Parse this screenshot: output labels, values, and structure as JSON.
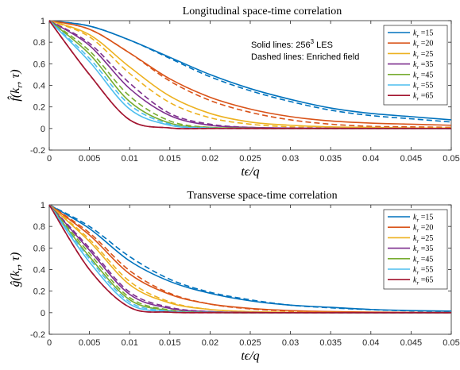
{
  "chart_data": [
    {
      "type": "line",
      "title": "Longitudinal space-time correlation",
      "xlabel": "tϵ/q",
      "ylabel": "f̂(kr, τ)",
      "ylabel_fn": "f",
      "xlim": [
        0,
        0.05
      ],
      "ylim": [
        -0.2,
        1
      ],
      "x_ticks": [
        "0",
        "0.005",
        "0.01",
        "0.015",
        "0.02",
        "0.025",
        "0.03",
        "0.035",
        "0.04",
        "0.045",
        "0.05"
      ],
      "y_ticks": [
        "-0.2",
        "0",
        "0.2",
        "0.4",
        "0.6",
        "0.8",
        "1"
      ],
      "grid": false,
      "legend_position": "top-right",
      "annotation_line1": "Solid lines: 256",
      "annotation_sup": "3",
      "annotation_line1_suffix": " LES",
      "annotation_line2": "Dashed lines: Enriched field",
      "line_styles": {
        "solid": "256³ LES",
        "dashed": "Enriched field"
      },
      "x": [
        0,
        0.005,
        0.01,
        0.015,
        0.02,
        0.025,
        0.03,
        0.035,
        0.04,
        0.045,
        0.05
      ],
      "series": [
        {
          "name": "kr =15",
          "color": "#0072BD",
          "solid": [
            1,
            0.95,
            0.82,
            0.66,
            0.5,
            0.37,
            0.27,
            0.19,
            0.14,
            0.11,
            0.08
          ],
          "dashed": [
            1,
            0.95,
            0.82,
            0.65,
            0.48,
            0.35,
            0.25,
            0.17,
            0.12,
            0.09,
            0.06
          ]
        },
        {
          "name": "kr =20",
          "color": "#D95319",
          "solid": [
            1,
            0.92,
            0.7,
            0.46,
            0.29,
            0.18,
            0.11,
            0.07,
            0.05,
            0.04,
            0.03
          ],
          "dashed": [
            1,
            0.92,
            0.7,
            0.44,
            0.26,
            0.15,
            0.08,
            0.04,
            0.02,
            0.015,
            0.01
          ]
        },
        {
          "name": "kr =25",
          "color": "#EDB120",
          "solid": [
            1,
            0.87,
            0.57,
            0.3,
            0.14,
            0.06,
            0.03,
            0.015,
            0.01,
            0.005,
            0.004
          ],
          "dashed": [
            1,
            0.85,
            0.51,
            0.24,
            0.1,
            0.04,
            0.015,
            0.008,
            0.004,
            0.002,
            0.001
          ]
        },
        {
          "name": "kr =35",
          "color": "#7E2F8E",
          "solid": [
            1,
            0.77,
            0.37,
            0.12,
            0.03,
            0.01,
            0.004,
            0.002,
            0.001,
            0.001,
            0
          ],
          "dashed": [
            1,
            0.79,
            0.42,
            0.14,
            0.04,
            0.01,
            0.003,
            0.001,
            0,
            0,
            0
          ]
        },
        {
          "name": "kr =45",
          "color": "#77AC30",
          "solid": [
            1,
            0.69,
            0.25,
            0.05,
            0.01,
            0.002,
            0,
            0,
            0,
            0,
            0
          ],
          "dashed": [
            1,
            0.72,
            0.3,
            0.07,
            0.01,
            0.002,
            0,
            0,
            0,
            0,
            0
          ]
        },
        {
          "name": "kr =55",
          "color": "#4DBEEE",
          "solid": [
            1,
            0.62,
            0.18,
            0.03,
            0.003,
            0,
            0,
            0,
            0,
            0,
            0
          ],
          "dashed": [
            1,
            0.65,
            0.22,
            0.04,
            0.005,
            0,
            0,
            0,
            0,
            0,
            0
          ]
        },
        {
          "name": "kr =65",
          "color": "#A2142F",
          "solid": [
            1,
            0.5,
            0.08,
            0.005,
            0,
            0,
            0,
            0,
            0,
            0,
            0
          ],
          "dashed": [
            1,
            0.5,
            0.08,
            0.005,
            0,
            0,
            0,
            0,
            0,
            0,
            0
          ]
        }
      ]
    },
    {
      "type": "line",
      "title": "Transverse space-time correlation",
      "xlabel": "tϵ/q",
      "ylabel": "ĝ(kr, τ)",
      "ylabel_fn": "g",
      "xlim": [
        0,
        0.05
      ],
      "ylim": [
        -0.2,
        1
      ],
      "x_ticks": [
        "0",
        "0.005",
        "0.01",
        "0.015",
        "0.02",
        "0.025",
        "0.03",
        "0.035",
        "0.04",
        "0.045",
        "0.05"
      ],
      "y_ticks": [
        "-0.2",
        "0",
        "0.2",
        "0.4",
        "0.6",
        "0.8",
        "1"
      ],
      "grid": false,
      "legend_position": "top-right",
      "x": [
        0,
        0.005,
        0.01,
        0.015,
        0.02,
        0.025,
        0.03,
        0.035,
        0.04,
        0.045,
        0.05
      ],
      "series": [
        {
          "name": "kr =15",
          "color": "#0072BD",
          "solid": [
            1,
            0.78,
            0.48,
            0.29,
            0.18,
            0.11,
            0.07,
            0.05,
            0.03,
            0.02,
            0.015
          ],
          "dashed": [
            1,
            0.8,
            0.52,
            0.31,
            0.19,
            0.12,
            0.07,
            0.045,
            0.028,
            0.017,
            0.01
          ]
        },
        {
          "name": "kr =20",
          "color": "#D95319",
          "solid": [
            1,
            0.72,
            0.36,
            0.17,
            0.08,
            0.04,
            0.02,
            0.01,
            0.006,
            0.003,
            0.002
          ],
          "dashed": [
            1,
            0.74,
            0.39,
            0.18,
            0.08,
            0.035,
            0.015,
            0.007,
            0.003,
            0.001,
            0
          ]
        },
        {
          "name": "kr =25",
          "color": "#EDB120",
          "solid": [
            1,
            0.66,
            0.26,
            0.09,
            0.03,
            0.01,
            0.004,
            0.002,
            0.001,
            0,
            0
          ],
          "dashed": [
            1,
            0.68,
            0.29,
            0.1,
            0.03,
            0.01,
            0.003,
            0.001,
            0,
            0,
            0
          ]
        },
        {
          "name": "kr =35",
          "color": "#7E2F8E",
          "solid": [
            1,
            0.58,
            0.17,
            0.04,
            0.01,
            0.002,
            0,
            0,
            0,
            0,
            0
          ],
          "dashed": [
            1,
            0.6,
            0.19,
            0.05,
            0.01,
            0.002,
            0,
            0,
            0,
            0,
            0
          ]
        },
        {
          "name": "kr =45",
          "color": "#77AC30",
          "solid": [
            1,
            0.52,
            0.12,
            0.02,
            0.003,
            0,
            0,
            0,
            0,
            0,
            0
          ],
          "dashed": [
            1,
            0.55,
            0.14,
            0.025,
            0.004,
            0,
            0,
            0,
            0,
            0,
            0
          ]
        },
        {
          "name": "kr =55",
          "color": "#4DBEEE",
          "solid": [
            1,
            0.47,
            0.08,
            0.01,
            0.001,
            0,
            0,
            0,
            0,
            0,
            0
          ],
          "dashed": [
            1,
            0.5,
            0.1,
            0.015,
            0.002,
            0,
            0,
            0,
            0,
            0,
            0
          ]
        },
        {
          "name": "kr =65",
          "color": "#A2142F",
          "solid": [
            1,
            0.4,
            0.05,
            0.005,
            0,
            0,
            0,
            0,
            0,
            0,
            0
          ],
          "dashed": [
            1,
            0.4,
            0.05,
            0.005,
            0,
            0,
            0,
            0,
            0,
            0,
            0
          ]
        }
      ]
    }
  ]
}
